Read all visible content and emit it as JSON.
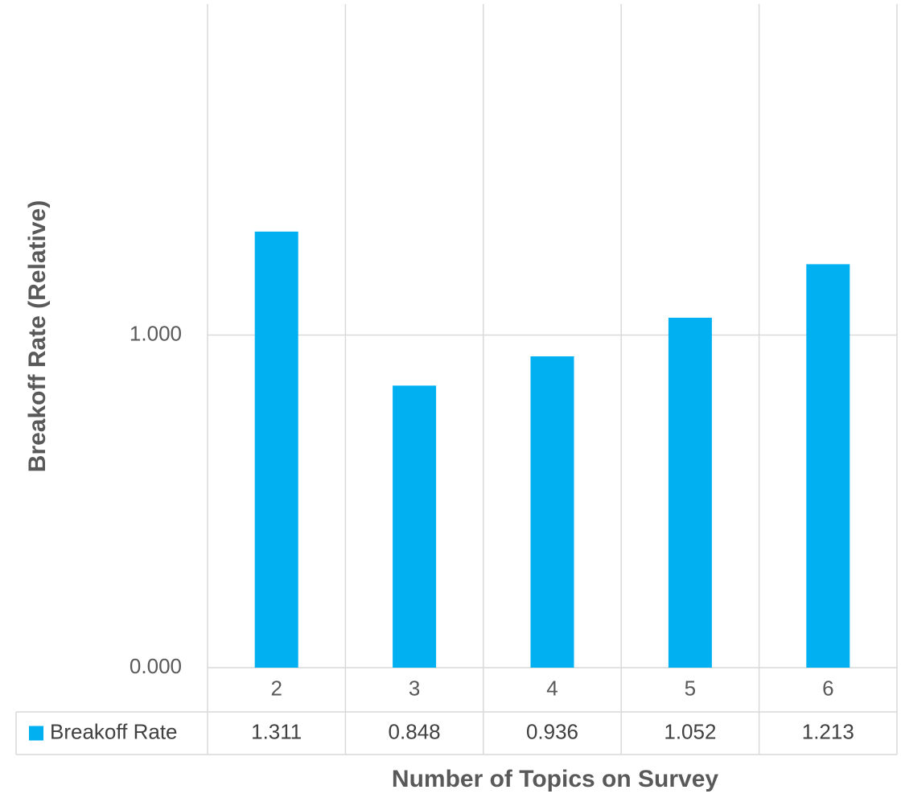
{
  "chart_data": {
    "type": "bar",
    "categories": [
      "2",
      "3",
      "4",
      "5",
      "6"
    ],
    "series": [
      {
        "name": "Breakoff Rate",
        "color": "#00B0F0",
        "values": [
          1.311,
          0.848,
          0.936,
          1.052,
          1.213
        ],
        "value_labels": [
          "1.311",
          "0.848",
          "0.936",
          "1.052",
          "1.213"
        ]
      }
    ],
    "ylabel": "Breakoff Rate (Relative)",
    "xlabel": "Number of Topics on Survey",
    "ylim": [
      0,
      2
    ],
    "yticks": [
      0,
      1
    ],
    "ytick_labels": [
      "0.000",
      "1.000"
    ],
    "grid": true,
    "data_table": true,
    "legend": "in data table"
  }
}
